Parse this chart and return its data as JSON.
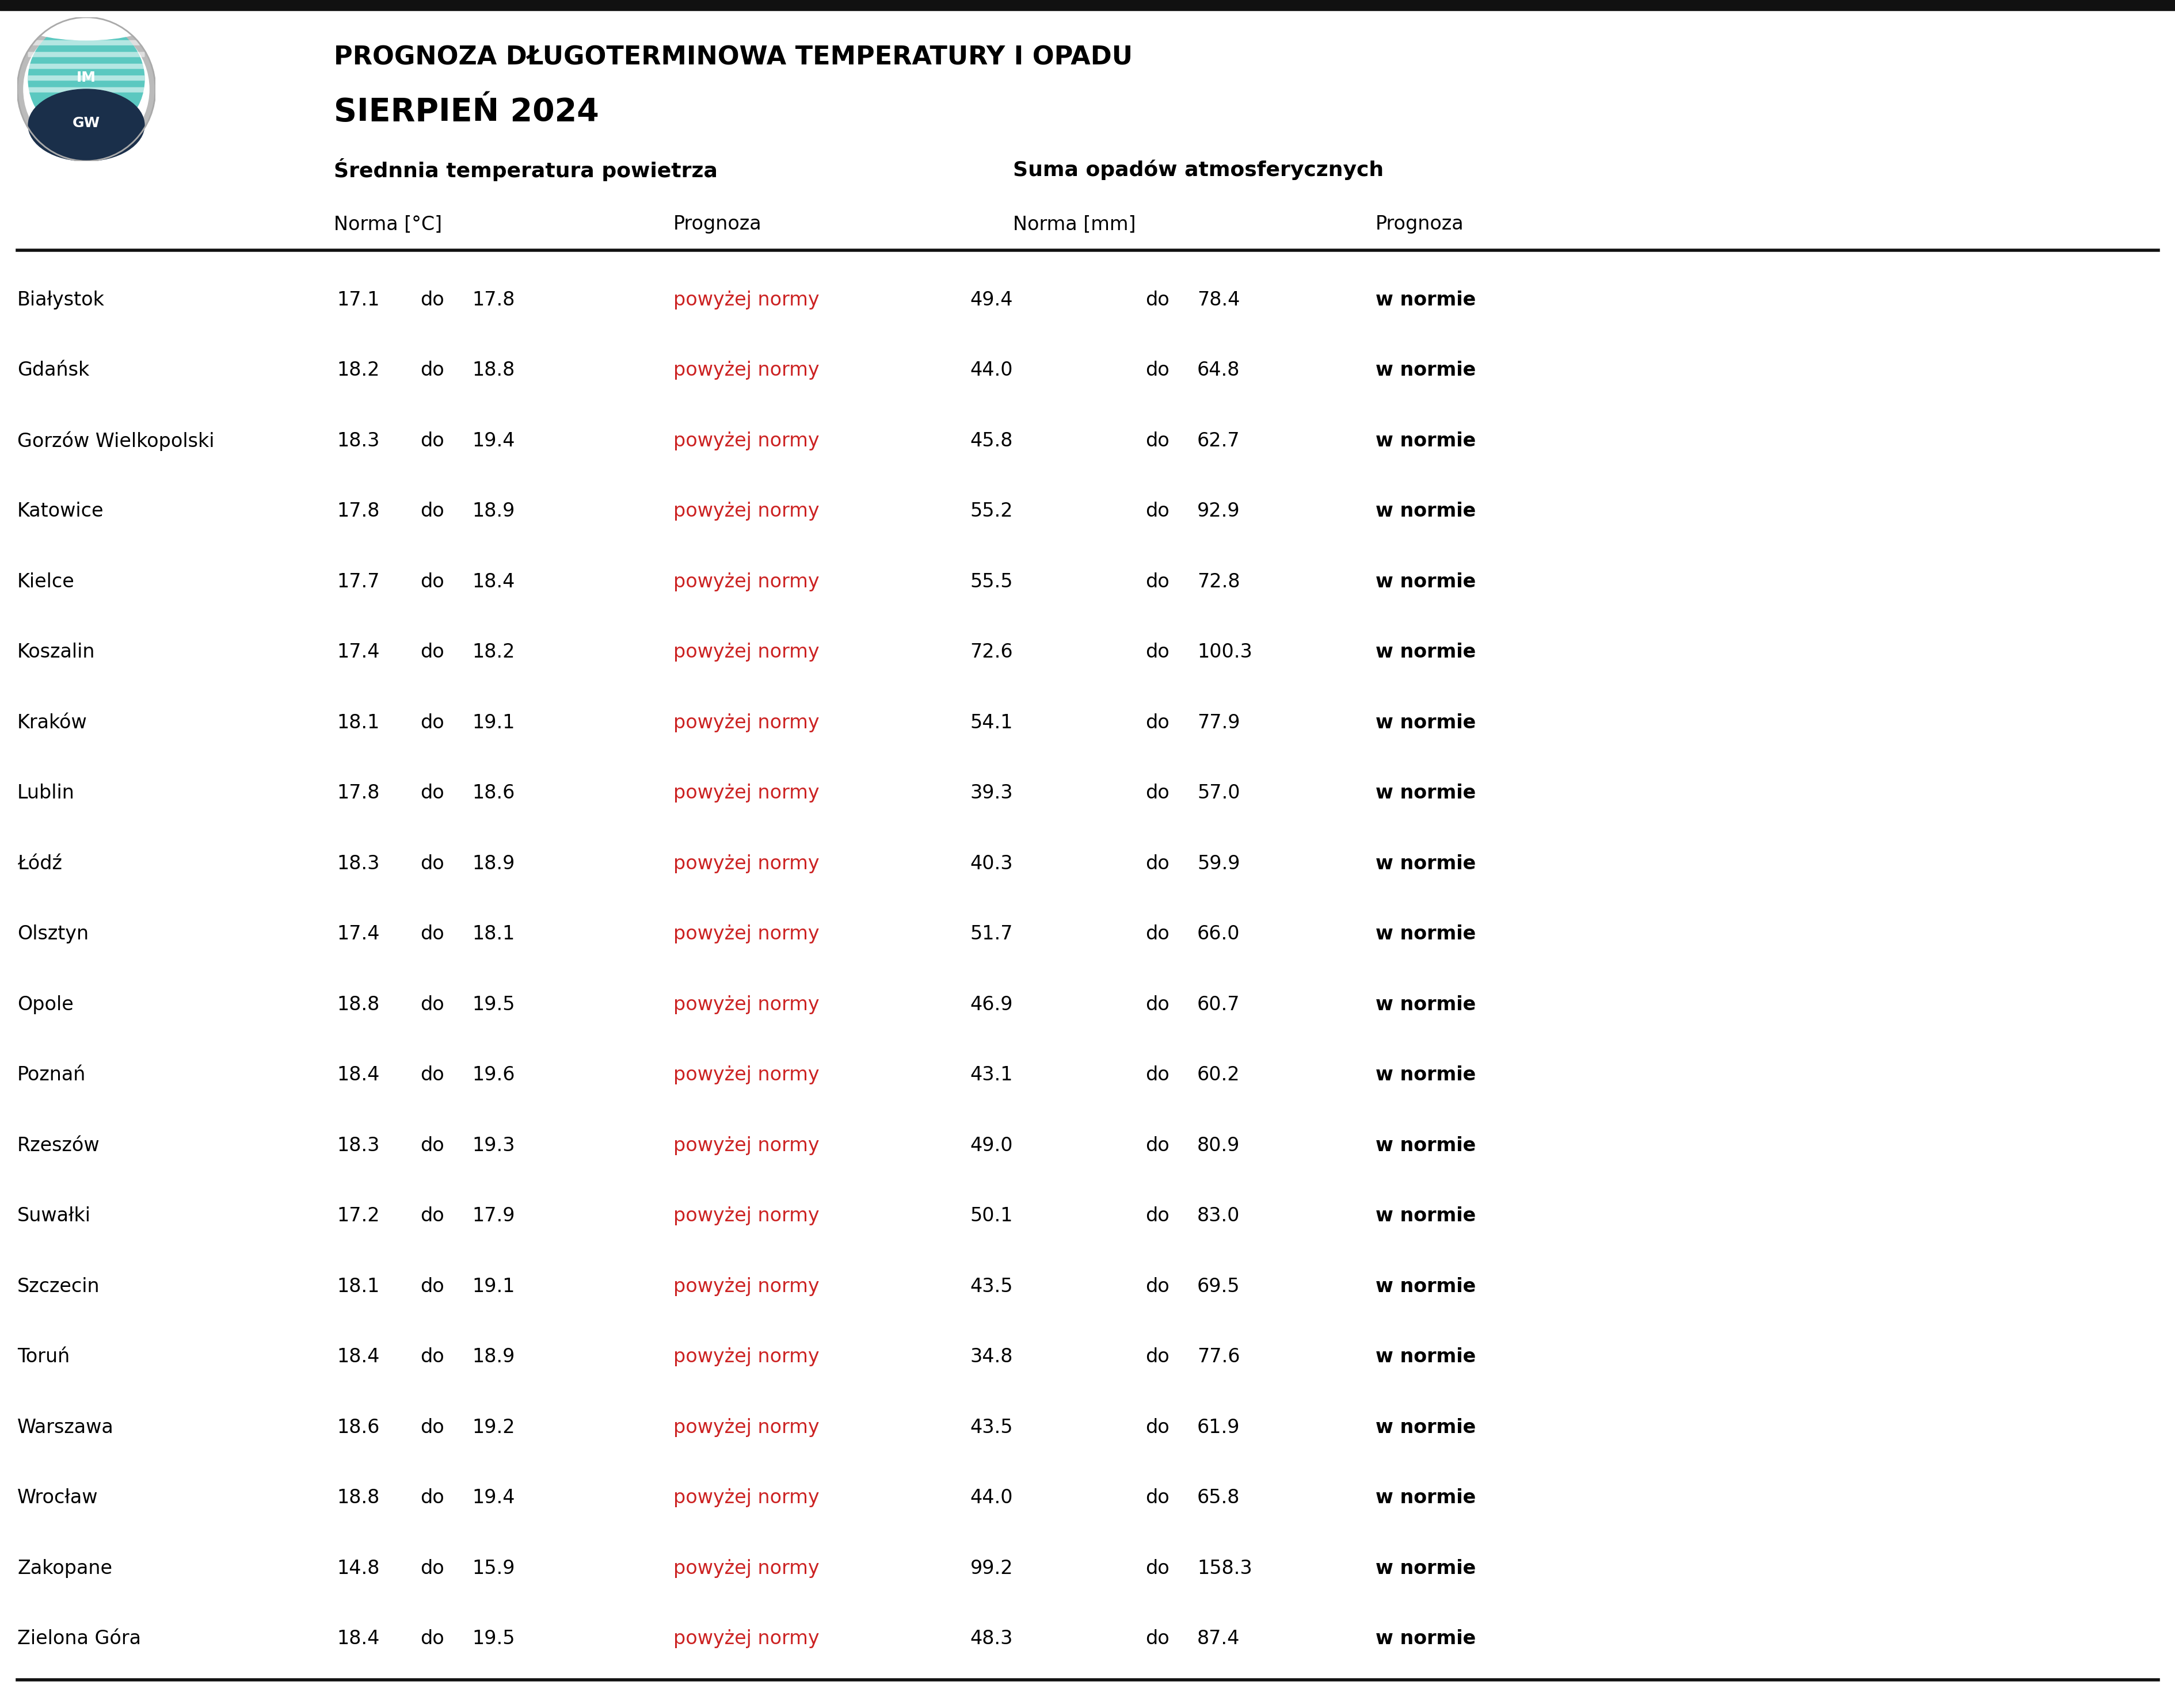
{
  "title_line1": "PROGNOZA DŁUGOTERMINOWA TEMPERATURY I OPADU",
  "title_line2": "SIERPIEŃ 2024",
  "col_group1": "Średnnia temperatura powietrza",
  "col_group2": "Suma opadów atmosferycznych",
  "cities": [
    "Białystok",
    "Gdańsk",
    "Gorzów Wielkopolski",
    "Katowice",
    "Kielce",
    "Koszalin",
    "Kraków",
    "Lublin",
    "Łódź",
    "Olsztyn",
    "Opole",
    "Poznań",
    "Rzeszów",
    "Suwałki",
    "Szczecin",
    "Toruń",
    "Warszawa",
    "Wrocław",
    "Zakopane",
    "Zielona Góra"
  ],
  "temp_norma_low": [
    17.1,
    18.2,
    18.3,
    17.8,
    17.7,
    17.4,
    18.1,
    17.8,
    18.3,
    17.4,
    18.8,
    18.4,
    18.3,
    17.2,
    18.1,
    18.4,
    18.6,
    18.8,
    14.8,
    18.4
  ],
  "temp_norma_high": [
    17.8,
    18.8,
    19.4,
    18.9,
    18.4,
    18.2,
    19.1,
    18.6,
    18.9,
    18.1,
    19.5,
    19.6,
    19.3,
    17.9,
    19.1,
    18.9,
    19.2,
    19.4,
    15.9,
    19.5
  ],
  "temp_prognoza": [
    "powyżej normy",
    "powyżej normy",
    "powyżej normy",
    "powyżej normy",
    "powyżej normy",
    "powyżej normy",
    "powyżej normy",
    "powyżej normy",
    "powyżej normy",
    "powyżej normy",
    "powyżej normy",
    "powyżej normy",
    "powyżej normy",
    "powyżej normy",
    "powyżej normy",
    "powyżej normy",
    "powyżej normy",
    "powyżej normy",
    "powyżej normy",
    "powyżej normy"
  ],
  "precip_norma_low": [
    49.4,
    44.0,
    45.8,
    55.2,
    55.5,
    72.6,
    54.1,
    39.3,
    40.3,
    51.7,
    46.9,
    43.1,
    49.0,
    50.1,
    43.5,
    34.8,
    43.5,
    44.0,
    99.2,
    48.3
  ],
  "precip_norma_high": [
    78.4,
    64.8,
    62.7,
    92.9,
    72.8,
    100.3,
    77.9,
    57.0,
    59.9,
    66.0,
    60.7,
    60.2,
    80.9,
    83.0,
    69.5,
    77.6,
    61.9,
    65.8,
    158.3,
    87.4
  ],
  "precip_prognoza": [
    "w normie",
    "w normie",
    "w normie",
    "w normie",
    "w normie",
    "w normie",
    "w normie",
    "w normie",
    "w normie",
    "w normie",
    "w normie",
    "w normie",
    "w normie",
    "w normie",
    "w normie",
    "w normie",
    "w normie",
    "w normie",
    "w normie",
    "w normie"
  ],
  "bg_color": "#ffffff",
  "text_color": "#000000",
  "red_color": "#cc2222",
  "top_bar_color": "#111111"
}
